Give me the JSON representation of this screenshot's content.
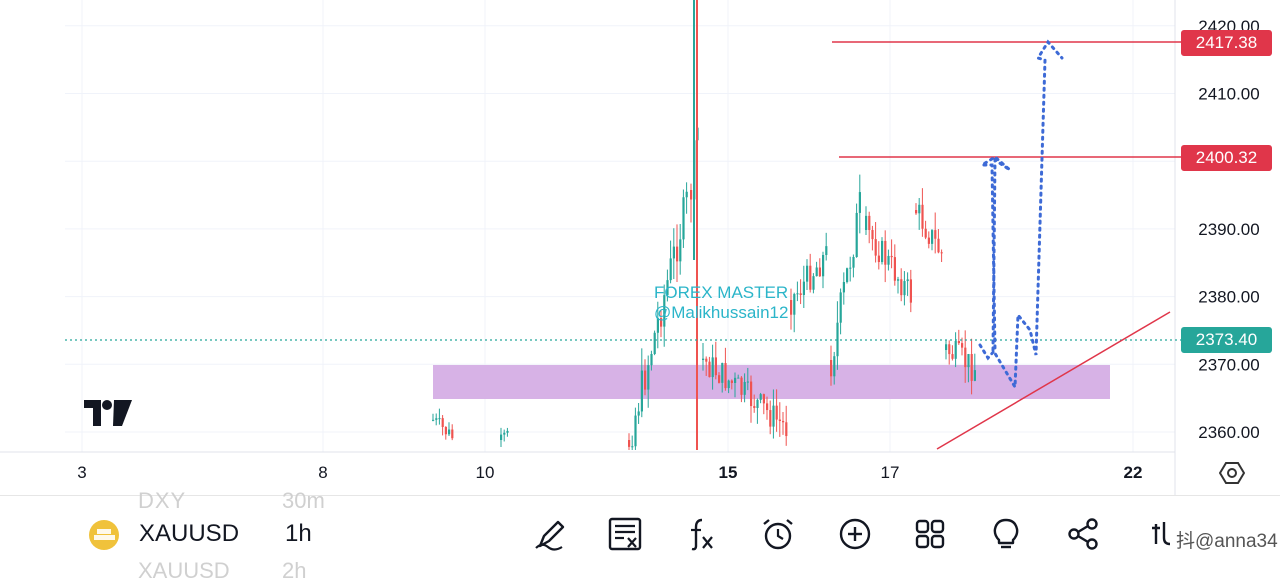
{
  "chart": {
    "y_axis_ticks": [
      "2420.00",
      "2410.00",
      "2400.00",
      "2390.00",
      "2380.00",
      "2370.00",
      "2360.00"
    ],
    "x_axis_ticks": [
      {
        "label": "3",
        "bold": false
      },
      {
        "label": "8",
        "bold": false
      },
      {
        "label": "10",
        "bold": false
      },
      {
        "label": "15",
        "bold": true
      },
      {
        "label": "17",
        "bold": false
      },
      {
        "label": "22",
        "bold": true
      }
    ],
    "price_labels": {
      "level_high": "2417.38",
      "level_mid": "2400.32",
      "current": "2373.40"
    },
    "watermark_line1": "FOREX MASTER",
    "watermark_line2": "@Malikhussain12",
    "colors": {
      "up": "#26a69a",
      "down": "#ef5350",
      "level_line": "#e0364a",
      "zone": "#d7b2e6",
      "projection": "#3d6ad6",
      "current_price": "#26a69a",
      "watermark": "#2bb5c9"
    }
  },
  "toolbar": {
    "ghost_top_symbol": "DXY",
    "ghost_top_interval": "30m",
    "symbol": "XAUUSD",
    "interval": "1h",
    "ghost_bottom_symbol": "XAUUSD",
    "ghost_bottom_interval": "2h",
    "icons": [
      "draw-icon",
      "news-icon",
      "indicators-icon",
      "alert-icon",
      "add-icon",
      "layout-icon",
      "ideas-icon",
      "share-icon",
      "replay-icon"
    ],
    "user_watermark": "抖@anna34"
  }
}
